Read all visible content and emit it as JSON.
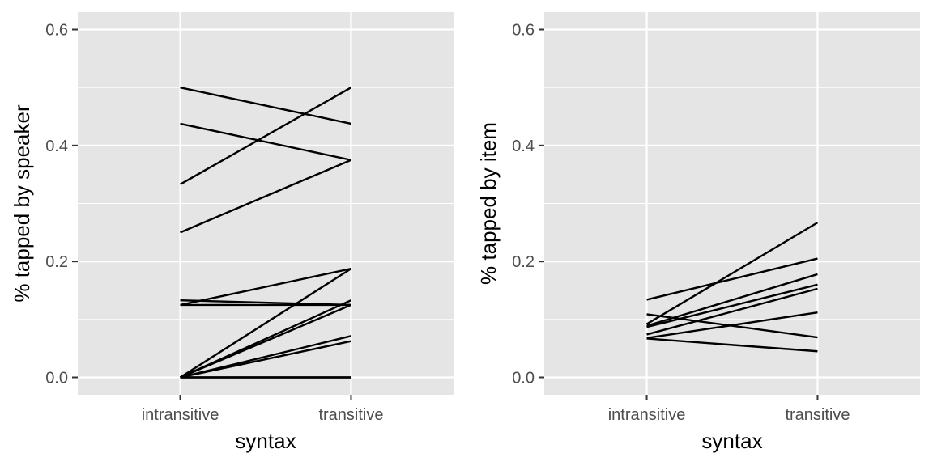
{
  "chart_data": [
    {
      "type": "line",
      "xlabel": "syntax",
      "ylabel": "% tapped by speaker",
      "categories": [
        "intransitive",
        "transitive"
      ],
      "ylim": [
        -0.03,
        0.63
      ],
      "yticks": [
        0.0,
        0.2,
        0.4,
        0.6
      ],
      "ytick_labels": [
        "0.0",
        "0.2",
        "0.4",
        "0.6"
      ],
      "grid": true,
      "legend": "none",
      "line_color": "#000000",
      "series": [
        {
          "values": [
            0.5,
            0.4375
          ]
        },
        {
          "values": [
            0.4375,
            0.375
          ]
        },
        {
          "values": [
            0.333,
            0.5
          ]
        },
        {
          "values": [
            0.25,
            0.375
          ]
        },
        {
          "values": [
            0.125,
            0.1875
          ]
        },
        {
          "values": [
            0.133,
            0.125
          ]
        },
        {
          "values": [
            0.125,
            0.125
          ]
        },
        {
          "values": [
            0.0,
            0.1875
          ]
        },
        {
          "values": [
            0.0,
            0.133
          ]
        },
        {
          "values": [
            0.0,
            0.125
          ]
        },
        {
          "values": [
            0.0,
            0.0714
          ]
        },
        {
          "values": [
            0.0,
            0.0625
          ]
        },
        {
          "values": [
            0.0,
            0.0
          ]
        },
        {
          "values": [
            0.0,
            0.0
          ]
        }
      ]
    },
    {
      "type": "line",
      "xlabel": "syntax",
      "ylabel": "% tapped by item",
      "categories": [
        "intransitive",
        "transitive"
      ],
      "ylim": [
        -0.03,
        0.63
      ],
      "yticks": [
        0.0,
        0.2,
        0.4,
        0.6
      ],
      "ytick_labels": [
        "0.0",
        "0.2",
        "0.4",
        "0.6"
      ],
      "grid": true,
      "legend": "none",
      "line_color": "#000000",
      "series": [
        {
          "values": [
            0.134,
            0.205
          ]
        },
        {
          "values": [
            0.092,
            0.267
          ]
        },
        {
          "values": [
            0.089,
            0.178
          ]
        },
        {
          "values": [
            0.087,
            0.16
          ]
        },
        {
          "values": [
            0.074,
            0.153
          ]
        },
        {
          "values": [
            0.068,
            0.112
          ]
        },
        {
          "values": [
            0.109,
            0.069
          ]
        },
        {
          "values": [
            0.067,
            0.045
          ]
        }
      ]
    }
  ],
  "colors": {
    "panel_background": "#e5e5e5",
    "grid_line": "#ffffff",
    "data_line": "#000000",
    "tick_mark": "#333333",
    "tick_label": "#4d4d4d",
    "axis_title": "#000000"
  }
}
